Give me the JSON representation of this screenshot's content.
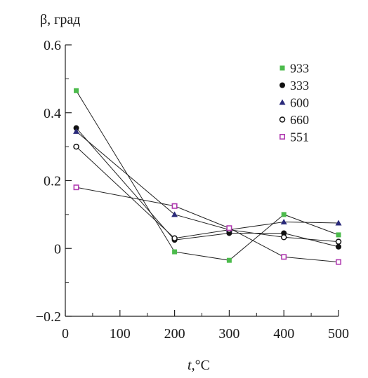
{
  "chart_data": {
    "type": "line",
    "ylabel": "β, град",
    "xlabel_var": "t",
    "xlabel_unit": ",°C",
    "xlim": [
      0,
      500
    ],
    "ylim": [
      -0.2,
      0.6
    ],
    "xticks": [
      0,
      100,
      200,
      300,
      400,
      500
    ],
    "xtick_labels": [
      "0",
      "100",
      "200",
      "300",
      "400",
      "500"
    ],
    "yticks": [
      -0.2,
      0,
      0.2,
      0.4,
      0.6
    ],
    "ytick_labels": [
      "−0.2",
      "0",
      "0.2",
      "0.4",
      "0.6"
    ],
    "legend_position": "top-right",
    "grid": false,
    "series": [
      {
        "name": "933",
        "marker": "filled-square",
        "color": "#4cbb4c",
        "x": [
          20,
          200,
          300,
          400,
          500
        ],
        "y": [
          0.465,
          -0.01,
          -0.035,
          0.1,
          0.04
        ]
      },
      {
        "name": "333",
        "marker": "filled-circle",
        "color": "#111111",
        "x": [
          20,
          200,
          300,
          400,
          500
        ],
        "y": [
          0.355,
          0.025,
          0.045,
          0.045,
          0.005
        ]
      },
      {
        "name": "600",
        "marker": "filled-triangle",
        "color": "#2a2a7a",
        "x": [
          20,
          200,
          300,
          400,
          500
        ],
        "y": [
          0.345,
          0.1,
          0.055,
          0.078,
          0.075
        ]
      },
      {
        "name": "660",
        "marker": "open-circle",
        "color": "#111111",
        "x": [
          20,
          200,
          300,
          400,
          500
        ],
        "y": [
          0.3,
          0.03,
          0.055,
          0.033,
          0.02
        ]
      },
      {
        "name": "551",
        "marker": "open-square",
        "color": "#b03ab0",
        "x": [
          20,
          200,
          300,
          400,
          500
        ],
        "y": [
          0.18,
          0.125,
          0.06,
          -0.025,
          -0.04
        ]
      }
    ]
  }
}
